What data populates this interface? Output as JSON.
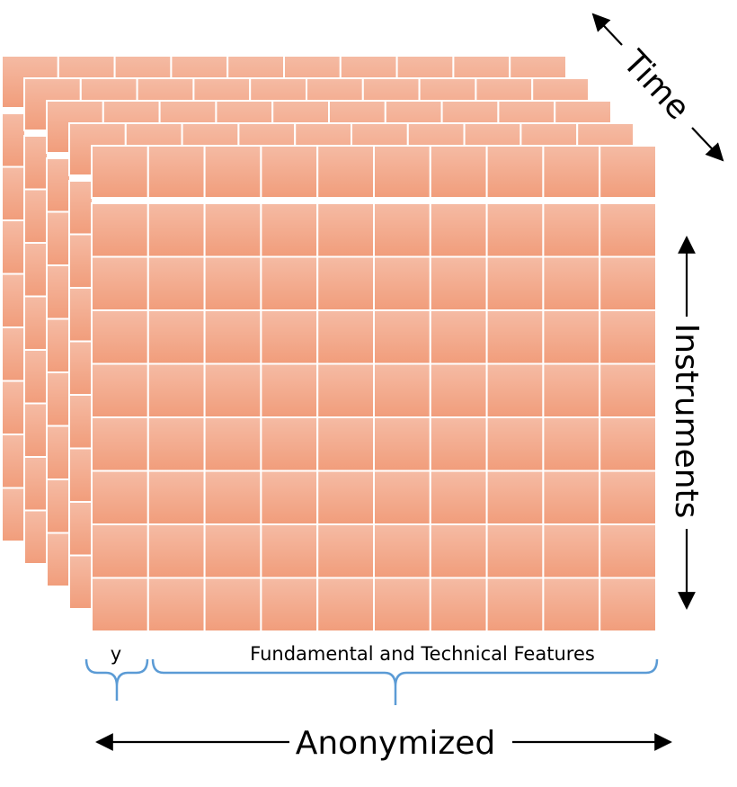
{
  "labels": {
    "time": "Time",
    "instruments": "Instruments",
    "anonymized": "Anonymized",
    "target": "y",
    "features": "Fundamental and Technical Features"
  },
  "grid": {
    "layers": 5,
    "columns": 10,
    "rows": 9
  },
  "colors": {
    "cell_top": "#f5bba4",
    "cell_bottom": "#f19d7b",
    "grid_line": "#ffffff",
    "brace": "#5b9bd5",
    "arrow": "#000000"
  }
}
